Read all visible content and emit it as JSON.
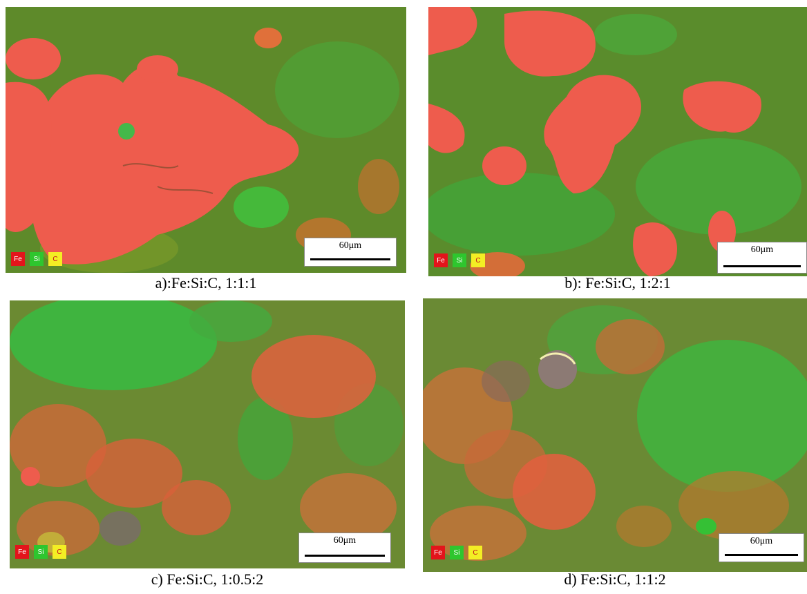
{
  "panels": [
    {
      "id": "a",
      "caption": "a):Fe:Si:C, 1:1:1"
    },
    {
      "id": "b",
      "caption": "b): Fe:Si:C, 1:2:1"
    },
    {
      "id": "c",
      "caption": "c) Fe:Si:C, 1:0.5:2"
    },
    {
      "id": "d",
      "caption": "d) Fe:Si:C, 1:1:2"
    }
  ],
  "legend": {
    "fe": "Fe",
    "si": "Si",
    "c": "C"
  },
  "colors": {
    "fe": "#e3141b",
    "si": "#2ec62e",
    "c": "#f3ee24",
    "matrix": "#5f8a2a"
  },
  "scale_bar": {
    "label": "60μm"
  }
}
